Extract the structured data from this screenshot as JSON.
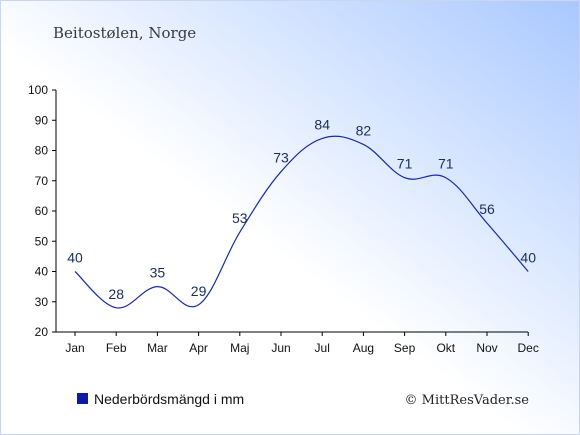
{
  "title": "Beitostølen, Norge",
  "legend_label": "Nederbördsmängd i mm",
  "credit": "© MittResVader.se",
  "colors": {
    "line": "#1a2aa8",
    "legend_swatch": "#0d1aa6",
    "axis": "#000000"
  },
  "chart_data": {
    "type": "line",
    "categories": [
      "Jan",
      "Feb",
      "Mar",
      "Apr",
      "Maj",
      "Jun",
      "Jul",
      "Aug",
      "Sep",
      "Okt",
      "Nov",
      "Dec"
    ],
    "series": [
      {
        "name": "Nederbördsmängd i mm",
        "values": [
          40,
          28,
          35,
          29,
          53,
          73,
          84,
          82,
          71,
          71,
          56,
          40
        ]
      }
    ],
    "ylim": [
      20,
      100
    ],
    "yticks": [
      20,
      30,
      40,
      50,
      60,
      70,
      80,
      90,
      100
    ],
    "grid": false,
    "legend_position": "bottom-left"
  }
}
